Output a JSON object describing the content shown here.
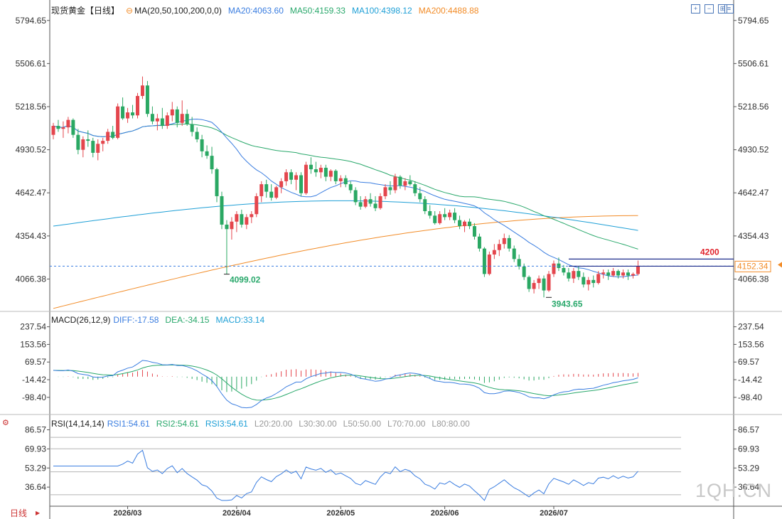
{
  "chart_data": [
    {
      "type": "candlestick",
      "title": "现货黄金【日线】",
      "indicator_label": "MA(20,50,100,200,0,0)",
      "ma_labels": [
        "MA20:4063.60",
        "MA50:4159.33",
        "MA100:4398.12",
        "MA200:4488.88"
      ],
      "ma_colors": [
        "#3a7de0",
        "#29a86b",
        "#1e9fd6",
        "#f28c28"
      ],
      "y_ticks": [
        "5794.65",
        "5506.61",
        "5218.56",
        "4930.52",
        "4642.47",
        "4354.43",
        "4066.38"
      ],
      "ylim": [
        3850,
        5860
      ],
      "x_ticks": [
        "2026/03",
        "2026/04",
        "2026/05",
        "2026/06",
        "2026/07"
      ],
      "last_price": "4152.34",
      "annotations": [
        "4099.02",
        "3943.65",
        "4200"
      ],
      "ohlc": [
        [
          5030,
          5110,
          5000,
          5090
        ],
        [
          5090,
          5130,
          5050,
          5070
        ],
        [
          5070,
          5120,
          5010,
          5080
        ],
        [
          5080,
          5150,
          5040,
          5130
        ],
        [
          5130,
          5140,
          5010,
          5030
        ],
        [
          5030,
          5070,
          4900,
          4930
        ],
        [
          4930,
          5020,
          4880,
          5000
        ],
        [
          5000,
          5060,
          4950,
          4990
        ],
        [
          4990,
          5010,
          4880,
          4910
        ],
        [
          4910,
          5000,
          4860,
          4970
        ],
        [
          4970,
          5010,
          4920,
          4990
        ],
        [
          4990,
          5070,
          4970,
          5050
        ],
        [
          5050,
          5090,
          5000,
          5010
        ],
        [
          5010,
          5240,
          5000,
          5220
        ],
        [
          5220,
          5280,
          5130,
          5140
        ],
        [
          5140,
          5210,
          5110,
          5180
        ],
        [
          5180,
          5230,
          5140,
          5160
        ],
        [
          5160,
          5310,
          5140,
          5290
        ],
        [
          5290,
          5420,
          5270,
          5360
        ],
        [
          5360,
          5390,
          5150,
          5170
        ],
        [
          5170,
          5220,
          5100,
          5120
        ],
        [
          5120,
          5170,
          5060,
          5140
        ],
        [
          5140,
          5210,
          5070,
          5090
        ],
        [
          5090,
          5180,
          5070,
          5160
        ],
        [
          5160,
          5250,
          5120,
          5200
        ],
        [
          5200,
          5220,
          5080,
          5110
        ],
        [
          5110,
          5260,
          5090,
          5170
        ],
        [
          5170,
          5200,
          5090,
          5100
        ],
        [
          5100,
          5150,
          5020,
          5050
        ],
        [
          5050,
          5080,
          4980,
          5000
        ],
        [
          5000,
          5030,
          4880,
          4920
        ],
        [
          4920,
          4960,
          4870,
          4890
        ],
        [
          4890,
          4950,
          4770,
          4800
        ],
        [
          4800,
          4810,
          4580,
          4620
        ],
        [
          4620,
          4650,
          4400,
          4430
        ],
        [
          4430,
          4460,
          4099,
          4400
        ],
        [
          4400,
          4480,
          4330,
          4450
        ],
        [
          4450,
          4520,
          4380,
          4500
        ],
        [
          4500,
          4530,
          4410,
          4430
        ],
        [
          4430,
          4500,
          4400,
          4480
        ],
        [
          4480,
          4520,
          4440,
          4500
        ],
        [
          4500,
          4640,
          4480,
          4620
        ],
        [
          4620,
          4720,
          4580,
          4700
        ],
        [
          4700,
          4730,
          4610,
          4650
        ],
        [
          4650,
          4700,
          4590,
          4610
        ],
        [
          4610,
          4690,
          4600,
          4680
        ],
        [
          4680,
          4740,
          4640,
          4720
        ],
        [
          4720,
          4800,
          4690,
          4780
        ],
        [
          4780,
          4800,
          4700,
          4730
        ],
        [
          4730,
          4780,
          4660,
          4760
        ],
        [
          4760,
          4780,
          4620,
          4640
        ],
        [
          4640,
          4850,
          4630,
          4830
        ],
        [
          4830,
          4880,
          4770,
          4800
        ],
        [
          4800,
          4850,
          4750,
          4780
        ],
        [
          4780,
          4830,
          4740,
          4810
        ],
        [
          4810,
          4830,
          4720,
          4750
        ],
        [
          4750,
          4800,
          4720,
          4790
        ],
        [
          4790,
          4800,
          4700,
          4720
        ],
        [
          4720,
          4760,
          4680,
          4740
        ],
        [
          4740,
          4760,
          4680,
          4700
        ],
        [
          4700,
          4720,
          4640,
          4660
        ],
        [
          4660,
          4680,
          4560,
          4580
        ],
        [
          4580,
          4620,
          4530,
          4550
        ],
        [
          4550,
          4620,
          4540,
          4600
        ],
        [
          4600,
          4640,
          4550,
          4570
        ],
        [
          4570,
          4620,
          4520,
          4540
        ],
        [
          4540,
          4640,
          4530,
          4620
        ],
        [
          4620,
          4700,
          4600,
          4680
        ],
        [
          4680,
          4720,
          4630,
          4660
        ],
        [
          4660,
          4770,
          4640,
          4750
        ],
        [
          4750,
          4760,
          4670,
          4690
        ],
        [
          4690,
          4740,
          4660,
          4720
        ],
        [
          4720,
          4760,
          4690,
          4700
        ],
        [
          4700,
          4720,
          4620,
          4640
        ],
        [
          4640,
          4680,
          4580,
          4600
        ],
        [
          4600,
          4620,
          4500,
          4520
        ],
        [
          4520,
          4560,
          4470,
          4490
        ],
        [
          4490,
          4520,
          4430,
          4440
        ],
        [
          4440,
          4520,
          4430,
          4500
        ],
        [
          4500,
          4540,
          4460,
          4480
        ],
        [
          4480,
          4530,
          4460,
          4510
        ],
        [
          4510,
          4540,
          4440,
          4460
        ],
        [
          4460,
          4490,
          4400,
          4420
        ],
        [
          4420,
          4460,
          4380,
          4450
        ],
        [
          4450,
          4470,
          4400,
          4420
        ],
        [
          4420,
          4440,
          4330,
          4350
        ],
        [
          4350,
          4370,
          4250,
          4270
        ],
        [
          4270,
          4280,
          4080,
          4100
        ],
        [
          4100,
          4250,
          4090,
          4230
        ],
        [
          4230,
          4300,
          4200,
          4260
        ],
        [
          4260,
          4330,
          4220,
          4300
        ],
        [
          4300,
          4370,
          4270,
          4340
        ],
        [
          4340,
          4360,
          4250,
          4270
        ],
        [
          4270,
          4290,
          4180,
          4200
        ],
        [
          4200,
          4230,
          4130,
          4150
        ],
        [
          4150,
          4170,
          4060,
          4080
        ],
        [
          4080,
          4090,
          3980,
          4000
        ],
        [
          4000,
          4060,
          3970,
          4040
        ],
        [
          4040,
          4090,
          4000,
          4070
        ],
        [
          4070,
          4090,
          3943.65,
          3990
        ],
        [
          3990,
          4120,
          3980,
          4100
        ],
        [
          4100,
          4190,
          4080,
          4170
        ],
        [
          4170,
          4210,
          4120,
          4140
        ],
        [
          4140,
          4160,
          4090,
          4110
        ],
        [
          4110,
          4140,
          4050,
          4070
        ],
        [
          4070,
          4140,
          4040,
          4120
        ],
        [
          4120,
          4150,
          4060,
          4080
        ],
        [
          4080,
          4110,
          4010,
          4030
        ],
        [
          4030,
          4080,
          3990,
          4060
        ],
        [
          4060,
          4090,
          4010,
          4040
        ],
        [
          4040,
          4120,
          4030,
          4100
        ],
        [
          4100,
          4130,
          4070,
          4110
        ],
        [
          4110,
          4130,
          4060,
          4090
        ],
        [
          4090,
          4140,
          4080,
          4120
        ],
        [
          4120,
          4130,
          4070,
          4090
        ],
        [
          4090,
          4130,
          4070,
          4110
        ],
        [
          4110,
          4130,
          4060,
          4090
        ],
        [
          4090,
          4110,
          4070,
          4100
        ],
        [
          4100,
          4190,
          4090,
          4150
        ]
      ]
    },
    {
      "type": "line",
      "title": "MACD(26,12,9)",
      "labels": [
        "DIFF:-17.58",
        "DEA:-34.15",
        "MACD:33.14"
      ],
      "label_colors": [
        "#3a7de0",
        "#29a86b",
        "#1e9fd6"
      ],
      "y_ticks": [
        "237.54",
        "153.56",
        "69.57",
        "-14.42",
        "-98.40"
      ],
      "ylim": [
        -180,
        270
      ]
    },
    {
      "type": "line",
      "title": "RSI(14,14,14)",
      "labels": [
        "RSI1:54.61",
        "RSI2:54.61",
        "RSI3:54.61",
        "L20:20.00",
        "L30:30.00",
        "L50:50.00",
        "L70:70.00",
        "L80:80.00"
      ],
      "label_colors": [
        "#3a7de0",
        "#29a86b",
        "#1e9fd6",
        "#999999",
        "#999999",
        "#999999",
        "#999999",
        "#999999"
      ],
      "y_ticks": [
        "86.57",
        "69.93",
        "53.29",
        "36.64"
      ],
      "ylim": [
        20,
        90
      ]
    }
  ],
  "ui": {
    "period_label": "日线",
    "watermark": "1QH.CN"
  },
  "colors": {
    "up": "#e4464d",
    "down": "#2aa863",
    "axis": "#333333",
    "grid": "#e8e8e8",
    "rsi_ref": "#b5b5b5"
  }
}
